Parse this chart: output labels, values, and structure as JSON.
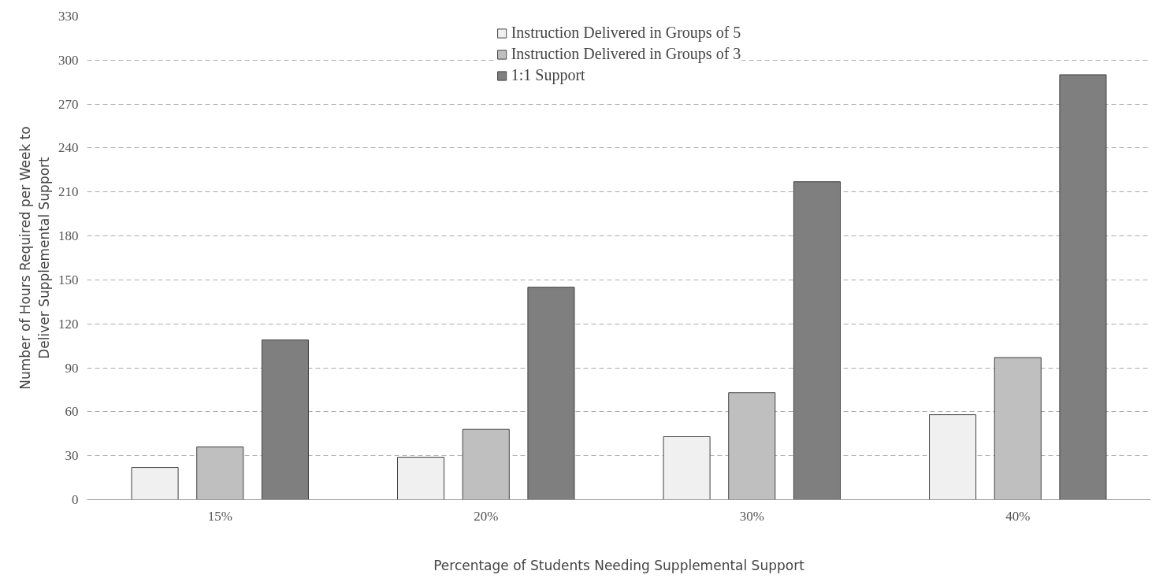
{
  "chart_data": {
    "type": "bar",
    "xlabel": "Percentage of Students Needing Supplemental Support",
    "ylabel": "Number of Hours Required per Week to\nDeliver Supplemental Support",
    "categories": [
      "15%",
      "20%",
      "30%",
      "40%"
    ],
    "series": [
      {
        "name": "Instruction Delivered in Groups of 5",
        "color": "#f0f0f0",
        "values": [
          22,
          29,
          43,
          58
        ]
      },
      {
        "name": "Instruction Delivered in Groups of 3",
        "color": "#bfbfbf",
        "values": [
          36,
          48,
          73,
          97
        ]
      },
      {
        "name": "1:1 Support",
        "color": "#7f7f7f",
        "values": [
          109,
          145,
          217,
          290
        ]
      }
    ],
    "ylim": [
      0,
      330
    ],
    "yticks": [
      0,
      30,
      60,
      90,
      120,
      150,
      180,
      210,
      240,
      270,
      300,
      330
    ],
    "grid": "y",
    "legend": "top"
  }
}
